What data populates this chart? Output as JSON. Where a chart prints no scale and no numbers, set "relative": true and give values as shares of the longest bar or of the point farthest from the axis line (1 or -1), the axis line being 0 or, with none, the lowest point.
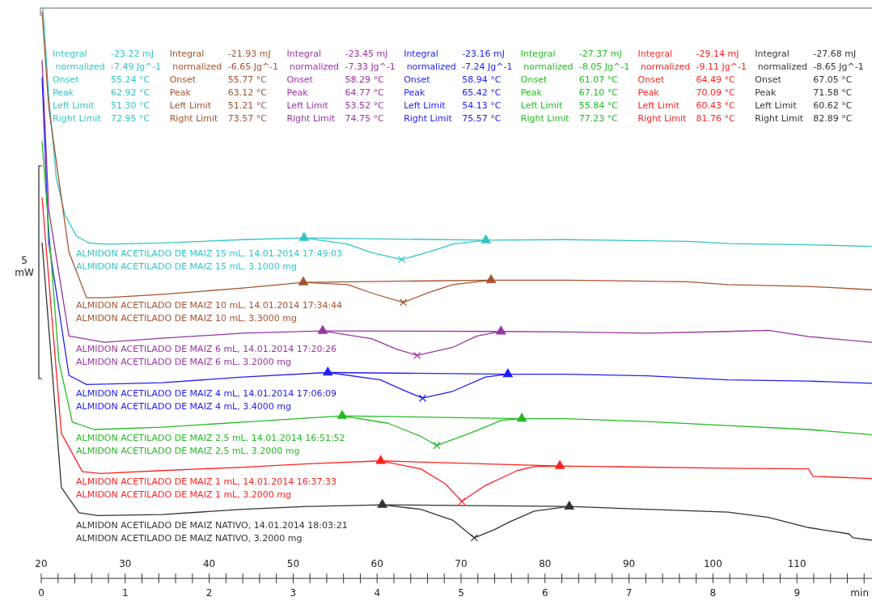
{
  "chart_data": {
    "type": "line",
    "relative": true,
    "ylabel": "5 mW",
    "xlabel": "min",
    "xlim": [
      0,
      9.9
    ],
    "xticks": [
      0,
      {
        "value": 0.2,
        "label": null
      },
      {
        "value": 0.4,
        "label": null
      },
      {
        "value": 0.6,
        "label": null
      },
      {
        "value": 0.8,
        "label": null
      },
      1,
      {
        "value": 1.2,
        "label": null
      },
      {
        "value": 1.4,
        "label": null
      },
      {
        "value": 1.6,
        "label": null
      },
      {
        "value": 1.8,
        "label": null
      },
      2,
      {
        "value": 2.2,
        "label": null
      },
      {
        "value": 2.4,
        "label": null
      },
      {
        "value": 2.6,
        "label": null
      },
      {
        "value": 2.8,
        "label": null
      },
      3,
      {
        "value": 3.2,
        "label": null
      },
      {
        "value": 3.4,
        "label": null
      },
      {
        "value": 3.6,
        "label": null
      },
      {
        "value": 3.8,
        "label": null
      },
      4,
      {
        "value": 4.2,
        "label": null
      },
      {
        "value": 4.4,
        "label": null
      },
      {
        "value": 4.6,
        "label": null
      },
      {
        "value": 4.8,
        "label": null
      },
      5,
      {
        "value": 5.2,
        "label": null
      },
      {
        "value": 5.4,
        "label": null
      },
      {
        "value": 5.6,
        "label": null
      },
      {
        "value": 5.8,
        "label": null
      },
      6,
      {
        "value": 6.2,
        "label": null
      },
      {
        "value": 6.4,
        "label": null
      },
      {
        "value": 6.6,
        "label": null
      },
      {
        "value": 6.8,
        "label": null
      },
      7,
      {
        "value": 7.2,
        "label": null
      },
      {
        "value": 7.4,
        "label": null
      },
      {
        "value": 7.6,
        "label": null
      },
      {
        "value": 7.8,
        "label": null
      },
      8,
      {
        "value": 8.2,
        "label": null
      },
      {
        "value": 8.4,
        "label": null
      },
      {
        "value": 8.6,
        "label": null
      },
      {
        "value": 8.8,
        "label": null
      },
      9,
      {
        "value": 9.2,
        "label": null
      },
      {
        "value": 9.4,
        "label": null
      },
      {
        "value": 9.6,
        "label": null
      },
      {
        "value": 9.8,
        "label": null
      }
    ],
    "x2lim": [
      20,
      119
    ],
    "x2ticks": [
      20,
      30,
      40,
      50,
      60,
      70,
      80,
      90,
      100,
      110
    ],
    "series": [
      {
        "name": "ALMIDON ACETILADO DE MAIZ 15 mL, 14.01.2014 17:49:03",
        "color": "#33c4c4",
        "x": [
          0.02,
          0.09,
          0.18,
          0.28,
          0.42,
          0.57,
          0.76,
          1.44,
          2.4,
          3.13,
          3.65,
          3.94,
          4.292,
          4.61,
          4.9,
          5.295,
          6.25,
          7.7,
          8.18,
          9.14,
          9.89
        ],
        "values": [
          1.0,
          0.844,
          0.702,
          0.638,
          0.6,
          0.588,
          0.586,
          0.588,
          0.594,
          0.597,
          0.586,
          0.571,
          0.559,
          0.572,
          0.586,
          0.593,
          0.594,
          0.591,
          0.587,
          0.585,
          0.582
        ]
      },
      {
        "name": "ALMIDON ACETILADO DE MAIZ 10 mL, 14.01.2014 17:34:44",
        "color": "#a5532e",
        "x": [
          0.01,
          0.09,
          0.33,
          0.54,
          0.75,
          1.44,
          2.4,
          3.121,
          3.65,
          3.94,
          4.312,
          4.61,
          4.9,
          5.357,
          6.25,
          7.7,
          8.18,
          9.14,
          9.89
        ],
        "values": [
          0.993,
          0.825,
          0.572,
          0.492,
          0.492,
          0.498,
          0.509,
          0.519,
          0.515,
          0.5,
          0.484,
          0.501,
          0.515,
          0.523,
          0.523,
          0.52,
          0.515,
          0.512,
          0.506
        ]
      },
      {
        "name": "ALMIDON ACETILADO DE MAIZ 6 mL, 14.01.2014 17:20:26",
        "color": "#9933a0",
        "x": [
          0.01,
          0.09,
          0.33,
          0.75,
          1.44,
          2.4,
          3.352,
          3.94,
          4.23,
          4.477,
          4.9,
          5.19,
          5.475,
          6.25,
          7.22,
          8.18,
          8.66,
          9.14,
          9.89
        ],
        "values": [
          0.908,
          0.645,
          0.425,
          0.414,
          0.421,
          0.43,
          0.434,
          0.42,
          0.402,
          0.391,
          0.405,
          0.425,
          0.433,
          0.432,
          0.43,
          0.433,
          0.435,
          0.424,
          0.414
        ]
      },
      {
        "name": "ALMIDON ACETILADO DE MAIZ 4 mL, 14.01.2014 17:06:09",
        "color": "#2020f0",
        "x": [
          0.01,
          0.09,
          0.33,
          0.54,
          1.44,
          2.4,
          3.413,
          4.04,
          4.33,
          4.542,
          4.9,
          5.29,
          5.557,
          6.25,
          7.22,
          8.18,
          9.14,
          9.89
        ],
        "values": [
          0.878,
          0.588,
          0.356,
          0.34,
          0.343,
          0.353,
          0.361,
          0.348,
          0.329,
          0.316,
          0.328,
          0.353,
          0.358,
          0.358,
          0.355,
          0.348,
          0.346,
          0.342
        ]
      },
      {
        "name": "ALMIDON ACETILADO DE MAIZ 2,5 mL, 14.01.2014 16:51:52",
        "color": "#22bb22",
        "x": [
          0.01,
          0.21,
          0.37,
          0.63,
          1.44,
          2.4,
          3.584,
          4.13,
          4.52,
          4.71,
          5.1,
          5.48,
          5.723,
          6.25,
          7.22,
          8.18,
          9.14,
          9.89
        ],
        "values": [
          0.766,
          0.381,
          0.274,
          0.261,
          0.265,
          0.274,
          0.285,
          0.272,
          0.249,
          0.233,
          0.254,
          0.277,
          0.28,
          0.28,
          0.275,
          0.268,
          0.261,
          0.252
        ]
      },
      {
        "name": "ALMIDON ACETILADO DE MAIZ 1 mL, 14.01.2014 16:37:33",
        "color": "#ff2020",
        "x": [
          0.01,
          0.24,
          0.49,
          0.71,
          1.44,
          2.4,
          3.17,
          4.043,
          4.52,
          4.81,
          5.009,
          5.29,
          5.67,
          5.87,
          6.176,
          6.73,
          8.18,
          9.14,
          9.19,
          9.89
        ],
        "values": [
          0.667,
          0.254,
          0.187,
          0.184,
          0.189,
          0.195,
          0.201,
          0.206,
          0.192,
          0.166,
          0.135,
          0.163,
          0.189,
          0.196,
          0.197,
          0.196,
          0.193,
          0.192,
          0.179,
          0.175
        ]
      },
      {
        "name": "ALMIDON ACETILADO DE MAIZ NATIVO, 14.01.2014 18:03:21",
        "color": "#333333",
        "x": [
          0.01,
          0.24,
          0.45,
          0.67,
          1.44,
          2.4,
          3.17,
          4.062,
          4.52,
          4.9,
          5.158,
          5.39,
          5.58,
          5.87,
          6.289,
          7.22,
          8.18,
          8.66,
          9.14,
          9.62,
          9.67,
          9.89
        ],
        "values": [
          0.588,
          0.159,
          0.115,
          0.11,
          0.112,
          0.121,
          0.126,
          0.129,
          0.121,
          0.102,
          0.071,
          0.085,
          0.099,
          0.118,
          0.126,
          0.121,
          0.116,
          0.107,
          0.089,
          0.078,
          0.071,
          0.067
        ]
      },
      {
        "type": "line",
        "color": "#33c4c4",
        "x": [
          3.13,
          5.295
        ],
        "values": [
          0.597,
          0.593
        ]
      },
      {
        "type": "scatter",
        "marker": "triangle",
        "color": "#33c4c4",
        "x": [
          3.13,
          5.295
        ],
        "values": [
          0.597,
          0.593
        ]
      },
      {
        "type": "line",
        "color": "#a5532e",
        "x": [
          3.121,
          5.357
        ],
        "values": [
          0.519,
          0.523
        ]
      },
      {
        "type": "scatter",
        "marker": "triangle",
        "color": "#a5532e",
        "x": [
          3.121,
          5.357
        ],
        "values": [
          0.519,
          0.523
        ]
      },
      {
        "type": "line",
        "color": "#9933a0",
        "x": [
          3.352,
          5.475
        ],
        "values": [
          0.434,
          0.433
        ]
      },
      {
        "type": "scatter",
        "marker": "triangle",
        "color": "#9933a0",
        "x": [
          3.352,
          5.475
        ],
        "values": [
          0.434,
          0.433
        ]
      },
      {
        "type": "line",
        "color": "#2020f0",
        "x": [
          3.413,
          5.557
        ],
        "values": [
          0.361,
          0.358
        ]
      },
      {
        "type": "scatter",
        "marker": "triangle",
        "color": "#2020f0",
        "x": [
          3.413,
          5.557
        ],
        "values": [
          0.361,
          0.358
        ]
      },
      {
        "type": "line",
        "color": "#22bb22",
        "x": [
          3.584,
          5.723
        ],
        "values": [
          0.285,
          0.28
        ]
      },
      {
        "type": "scatter",
        "marker": "triangle",
        "color": "#22bb22",
        "x": [
          3.584,
          5.723
        ],
        "values": [
          0.285,
          0.28
        ]
      },
      {
        "type": "line",
        "color": "#ff2020",
        "x": [
          4.043,
          6.176
        ],
        "values": [
          0.206,
          0.197
        ]
      },
      {
        "type": "scatter",
        "marker": "triangle",
        "color": "#ff2020",
        "x": [
          4.043,
          6.176
        ],
        "values": [
          0.206,
          0.197
        ]
      },
      {
        "type": "line",
        "color": "#333333",
        "x": [
          4.062,
          6.289
        ],
        "values": [
          0.129,
          0.126
        ]
      },
      {
        "type": "scatter",
        "marker": "triangle",
        "color": "#333333",
        "x": [
          4.062,
          6.289
        ],
        "values": [
          0.129,
          0.126
        ]
      },
      {
        "type": "scatter",
        "marker": "cross",
        "color": "#33c4c4",
        "x": [
          4.292
        ],
        "values": [
          0.559
        ]
      },
      {
        "type": "scatter",
        "marker": "cross",
        "color": "#a5532e",
        "x": [
          4.312
        ],
        "values": [
          0.484
        ]
      },
      {
        "type": "scatter",
        "marker": "cross",
        "color": "#9933a0",
        "x": [
          4.477
        ],
        "values": [
          0.391
        ]
      },
      {
        "type": "scatter",
        "marker": "cross",
        "color": "#2020f0",
        "x": [
          4.542
        ],
        "values": [
          0.316
        ]
      },
      {
        "type": "scatter",
        "marker": "cross",
        "color": "#22bb22",
        "x": [
          4.71
        ],
        "values": [
          0.233
        ]
      },
      {
        "type": "scatter",
        "marker": "cross",
        "color": "#ff2020",
        "x": [
          5.009
        ],
        "values": [
          0.135
        ]
      },
      {
        "type": "scatter",
        "marker": "cross",
        "color": "#333333",
        "x": [
          5.158
        ],
        "values": [
          0.071
        ]
      }
    ],
    "annotations": [
      "Integral\t-23.22 mJ\n normalized\t-7.49 Jg^-1\nOnset\t55.24 °C\nPeak\t62.92 °C\nLeft Limit\t51.30 °C\nRight Limit\t72.95 °C",
      "Integral\t-21.93 mJ\n normalized\t-6.65 Jg^-1\nOnset\t55.77 °C\nPeak\t63.12 °C\nLeft Limit\t51.21 °C\nRight Limit\t73.57 °C",
      "Integral\t-23.45 mJ\n normalized\t-7.33 Jg^-1\nOnset\t58.29 °C\nPeak\t64.77 °C\nLeft Limit\t53.52 °C\nRight Limit\t74.75 °C",
      "Integral\t-23.16 mJ\n normalized\t-7.24 Jg^-1\nOnset\t58.94 °C\nPeak\t65.42 °C\nLeft Limit\t54.13 °C\nRight Limit\t75.57 °C",
      "Integral\t-27.37 mJ\n normalized\t-8.05 Jg^-1\nOnset\t61.07 °C\nPeak\t67.10 °C\nLeft Limit\t55.84 °C\nRight Limit\t77.23 °C",
      "Integral\t-29.14 mJ\n normalized\t-9.11 Jg^-1\nOnset\t64.49 °C\nPeak\t70.09 °C\nLeft Limit\t60.43 °C\nRight Limit\t81.76 °C",
      "Integral\t-27.68 mJ\n normalized\t-8.65 Jg^-1\nOnset\t67.05 °C\nPeak\t71.58 °C\nLeft Limit\t60.62 °C\nRight Limit\t82.89 °C",
      "ALMIDON ACETILADO DE MAIZ 15 mL, 3.1000 mg",
      "ALMIDON ACETILADO DE MAIZ 10 mL, 3.3000 mg",
      "ALMIDON ACETILADO DE MAIZ 6 mL, 3.2000 mg",
      "ALMIDON ACETILADO DE MAIZ 4 mL, 3.4000 mg",
      "ALMIDON ACETILADO DE MAIZ 2,5 mL, 3.2000 mg",
      "ALMIDON ACETILADO DE MAIZ 1 mL, 3.2000 mg",
      "ALMIDON ACETILADO DE MAIZ NATIVO, 3.2000 mg"
    ]
  }
}
